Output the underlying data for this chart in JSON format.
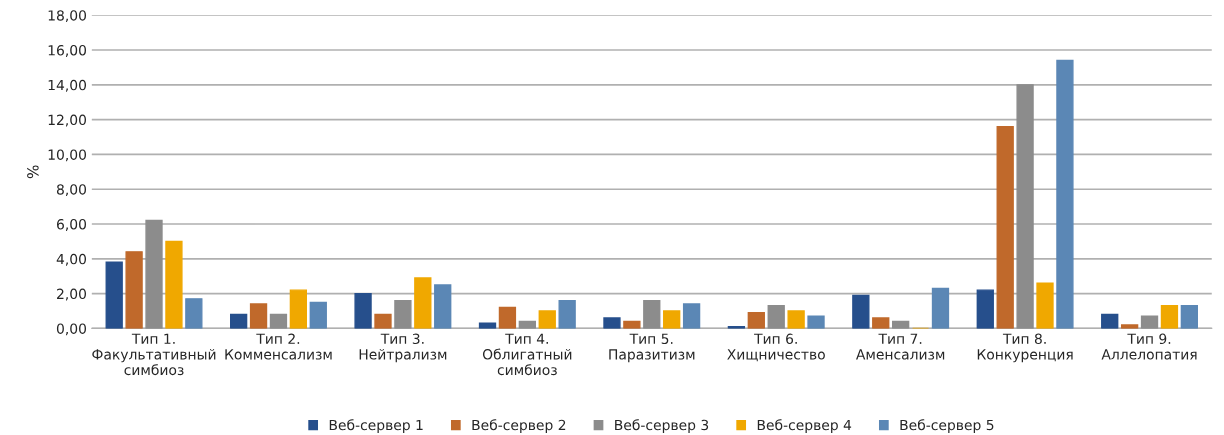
{
  "chart_data": {
    "type": "bar",
    "ylabel": "%",
    "categories": [
      "Тип 1.\nФакультативный\nсимбиоз",
      "Тип 2.\nКомменсализм",
      "Тип 3.\nНейтрализм",
      "Тип 4.\nОблигатный\nсимбиоз",
      "Тип 5.\nПаразитизм",
      "Тип 6.\nХищничество",
      "Тип 7.\nАменсализм",
      "Тип 8.\nКонкуренция",
      "Тип 9.\nАллелопатия"
    ],
    "series": [
      {
        "name": "Веб-сервер 1",
        "color": "#264f8c",
        "values": [
          3.8,
          0.8,
          2.0,
          0.3,
          0.6,
          0.1,
          1.9,
          2.2,
          0.8
        ]
      },
      {
        "name": "Веб-сервер 2",
        "color": "#c0692b",
        "values": [
          4.4,
          1.4,
          0.8,
          1.2,
          0.4,
          0.9,
          0.6,
          11.6,
          0.2
        ]
      },
      {
        "name": "Веб-сервер 3",
        "color": "#8c8c8c",
        "values": [
          6.2,
          0.8,
          1.6,
          0.4,
          1.6,
          1.3,
          0.4,
          14.0,
          0.7
        ]
      },
      {
        "name": "Веб-сервер 4",
        "color": "#f0a800",
        "values": [
          5.0,
          2.2,
          2.9,
          1.0,
          1.0,
          1.0,
          0.0,
          2.6,
          1.3
        ]
      },
      {
        "name": "Веб-сервер 5",
        "color": "#5b87b5",
        "values": [
          1.7,
          1.5,
          2.5,
          1.6,
          1.4,
          0.7,
          2.3,
          15.4,
          1.3
        ]
      }
    ],
    "ylim": [
      0,
      18
    ],
    "yticks": [
      {
        "value": 0,
        "label": "0,00"
      },
      {
        "value": 2,
        "label": "2,00"
      },
      {
        "value": 4,
        "label": "4,00"
      },
      {
        "value": 6,
        "label": "6,00"
      },
      {
        "value": 8,
        "label": "8,00"
      },
      {
        "value": 10,
        "label": "10,00"
      },
      {
        "value": 12,
        "label": "12,00"
      },
      {
        "value": 14,
        "label": "14,00"
      },
      {
        "value": 16,
        "label": "16,00"
      },
      {
        "value": 18,
        "label": "18,00"
      }
    ],
    "grid": "y",
    "legend": "bottom"
  }
}
